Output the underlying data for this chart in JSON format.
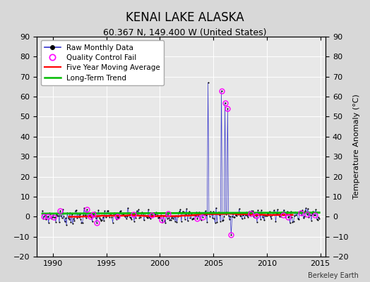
{
  "title": "KENAI LAKE ALASKA",
  "subtitle": "60.367 N, 149.400 W (United States)",
  "credit": "Berkeley Earth",
  "xlim": [
    1988.5,
    2015.5
  ],
  "ylim": [
    -20,
    90
  ],
  "yticks": [
    -20,
    -10,
    0,
    10,
    20,
    30,
    40,
    50,
    60,
    70,
    80,
    90
  ],
  "xticks": [
    1990,
    1995,
    2000,
    2005,
    2010,
    2015
  ],
  "raw_line_color": "#3333cc",
  "raw_marker_color": "#000000",
  "qc_fail_color": "#ff00ff",
  "moving_avg_color": "#ff0000",
  "trend_color": "#00bb00",
  "outer_bg": "#d8d8d8",
  "plot_bg": "#e8e8e8",
  "grid_color": "#ffffff",
  "title_fontsize": 12,
  "subtitle_fontsize": 9,
  "tick_fontsize": 8,
  "ylabel_right": "Temperature Anomaly (°C)"
}
